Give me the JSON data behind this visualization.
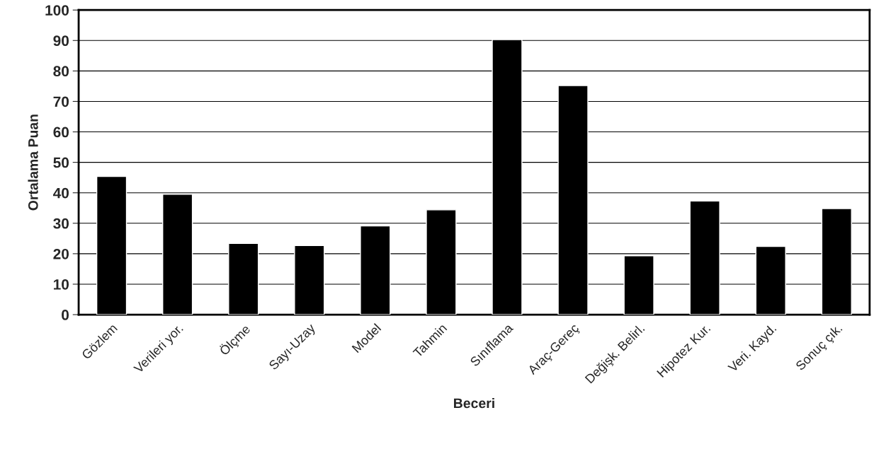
{
  "chart_data": {
    "type": "bar",
    "xlabel": "Beceri",
    "ylabel": "Ortalama Puan",
    "categories": [
      "Gözlem",
      "Verileri yor.",
      "Ölçme",
      "Sayı-Uzay",
      "Model",
      "Tahmin",
      "Sınıflama",
      "Araç-Gereç",
      "Değişk. Belirl.",
      "Hipotez Kur.",
      "Veri. Kayd.",
      "Sonuç çık."
    ],
    "values": [
      45.4,
      39.5,
      23.4,
      22.7,
      29.1,
      34.4,
      90.3,
      75.2,
      19.3,
      37.3,
      22.4,
      34.8
    ],
    "color": "#000000",
    "ylim": [
      0,
      100
    ],
    "yticks": [
      0,
      10,
      20,
      30,
      40,
      50,
      60,
      70,
      80,
      90,
      100
    ],
    "grid": "y",
    "legend": false
  }
}
